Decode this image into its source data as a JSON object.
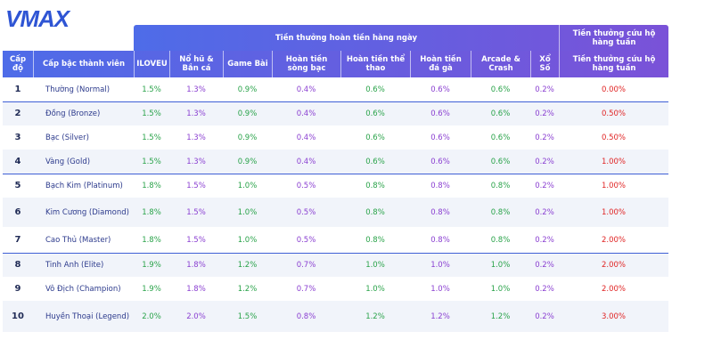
{
  "logo": "VMAX",
  "header": {
    "group_daily": "Tiền thưởng hoàn tiền hàng ngày",
    "group_weekly": "Tiền thưởng cứu hộ hàng tuần",
    "columns": [
      "Cấp độ",
      "Cấp bậc thành viên",
      "ILOVEU",
      "Nổ hũ & Bắn cá",
      "Game Bài",
      "Hoàn tiền sòng bạc",
      "Hoàn tiền thể thao",
      "Hoàn tiền đá gà",
      "Arcade & Crash",
      "Xổ Số",
      "Tiền thưởng cứu hộ hàng tuần"
    ]
  },
  "table": {
    "rows": [
      [
        "1",
        "Thường (Normal)",
        "1.5%",
        "1.3%",
        "0.9%",
        "0.4%",
        "0.6%",
        "0.6%",
        "0.6%",
        "0.2%",
        "0.00%"
      ],
      [
        "2",
        "Đồng (Bronze)",
        "1.5%",
        "1.3%",
        "0.9%",
        "0.4%",
        "0.6%",
        "0.6%",
        "0.6%",
        "0.2%",
        "0.50%"
      ],
      [
        "3",
        "Bạc (Silver)",
        "1.5%",
        "1.3%",
        "0.9%",
        "0.4%",
        "0.6%",
        "0.6%",
        "0.6%",
        "0.2%",
        "0.50%"
      ],
      [
        "4",
        "Vàng (Gold)",
        "1.5%",
        "1.3%",
        "0.9%",
        "0.4%",
        "0.6%",
        "0.6%",
        "0.6%",
        "0.2%",
        "1.00%"
      ],
      [
        "5",
        "Bạch Kim (Platinum)",
        "1.8%",
        "1.5%",
        "1.0%",
        "0.5%",
        "0.8%",
        "0.8%",
        "0.8%",
        "0.2%",
        "1.00%"
      ],
      [
        "6",
        "Kim Cương (Diamond)",
        "1.8%",
        "1.5%",
        "1.0%",
        "0.5%",
        "0.8%",
        "0.8%",
        "0.8%",
        "0.2%",
        "1.00%"
      ],
      [
        "7",
        "Cao Thủ (Master)",
        "1.8%",
        "1.5%",
        "1.0%",
        "0.5%",
        "0.8%",
        "0.8%",
        "0.8%",
        "0.2%",
        "2.00%"
      ],
      [
        "8",
        "Tinh Anh (Elite)",
        "1.9%",
        "1.8%",
        "1.2%",
        "0.7%",
        "1.0%",
        "1.0%",
        "1.0%",
        "0.2%",
        "2.00%"
      ],
      [
        "9",
        "Vô Địch (Champion)",
        "1.9%",
        "1.8%",
        "1.2%",
        "0.7%",
        "1.0%",
        "1.0%",
        "1.0%",
        "0.2%",
        "2.00%"
      ],
      [
        "10",
        "Huyền Thoại (Legend)",
        "2.0%",
        "2.0%",
        "1.5%",
        "0.8%",
        "1.2%",
        "1.2%",
        "1.2%",
        "0.2%",
        "3.00%"
      ]
    ]
  }
}
